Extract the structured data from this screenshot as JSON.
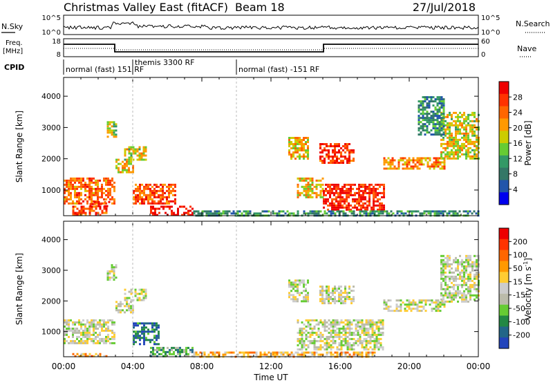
{
  "header": {
    "station": "Christmas Valley East (fitACF)",
    "beam": "Beam 18",
    "date": "27/Jul/2018"
  },
  "top_panels": {
    "nsky_label": "N.Sky",
    "nsky_ticks": [
      "10^5",
      "10^0"
    ],
    "nsearch_label": "N.Search",
    "nsearch_ticks": [
      "10^5",
      "10^0"
    ],
    "freq_label_1": "Freq.",
    "freq_label_2": "[MHz]",
    "freq_ticks": [
      "18",
      "8"
    ],
    "nave_label": "Nave",
    "nave_ticks": [
      "60",
      "0"
    ],
    "cpid_label": "CPID",
    "cpid_segments": [
      "normal (fast) 151 RF",
      "themis 3300 RF",
      "normal (fast) -151 RF"
    ]
  },
  "colors": {
    "power_scale": [
      "#0000ee",
      "#2255aa",
      "#337766",
      "#339966",
      "#66cc33",
      "#cccc00",
      "#ff9900",
      "#ff6600",
      "#ff3300",
      "#ee0000"
    ],
    "velocity_scale": [
      "#2244bb",
      "#226688",
      "#228844",
      "#66cc33",
      "#bbbbaa",
      "#cccccc",
      "#ffcc33",
      "#ff9900",
      "#ff6600",
      "#ff3300",
      "#ee0000"
    ]
  },
  "chart_data": [
    {
      "type": "heatmap",
      "name": "power",
      "xlabel": "Time UT",
      "ylabel": "Slant Range [km]",
      "x_ticks": [
        "00:00",
        "04:00",
        "08:00",
        "12:00",
        "16:00",
        "20:00",
        "00:00"
      ],
      "y_ticks": [
        "1000",
        "2000",
        "3000",
        "4000"
      ],
      "xlim": [
        0,
        24
      ],
      "ylim": [
        180,
        4600
      ],
      "colorbar_label": "Power [dB]",
      "colorbar_ticks": [
        "28",
        "24",
        "20",
        "16",
        "12",
        "8",
        "4"
      ],
      "regions": [
        {
          "t0": 0.0,
          "t1": 3.0,
          "r0": 600,
          "r1": 1400,
          "level": 0.75
        },
        {
          "t0": 0.5,
          "t1": 2.5,
          "r0": 200,
          "r1": 500,
          "level": 0.8
        },
        {
          "t0": 1.5,
          "t1": 2.7,
          "r0": 500,
          "r1": 650,
          "level": 0.9
        },
        {
          "t0": 2.5,
          "t1": 3.1,
          "r0": 2700,
          "r1": 3200,
          "level": 0.5
        },
        {
          "t0": 3.0,
          "t1": 4.0,
          "r0": 1600,
          "r1": 2000,
          "level": 0.6
        },
        {
          "t0": 3.5,
          "t1": 4.8,
          "r0": 2000,
          "r1": 2400,
          "level": 0.55
        },
        {
          "t0": 4.0,
          "t1": 6.5,
          "r0": 600,
          "r1": 1200,
          "level": 0.8
        },
        {
          "t0": 5.0,
          "t1": 7.5,
          "r0": 200,
          "r1": 500,
          "level": 0.95
        },
        {
          "t0": 13.0,
          "t1": 14.2,
          "r0": 2000,
          "r1": 2700,
          "level": 0.6
        },
        {
          "t0": 14.8,
          "t1": 16.8,
          "r0": 1900,
          "r1": 2500,
          "level": 0.85
        },
        {
          "t0": 13.5,
          "t1": 15.0,
          "r0": 800,
          "r1": 1400,
          "level": 0.6
        },
        {
          "t0": 15.0,
          "t1": 18.5,
          "r0": 400,
          "r1": 1200,
          "level": 0.9
        },
        {
          "t0": 18.5,
          "t1": 22.0,
          "r0": 1700,
          "r1": 2050,
          "level": 0.7
        },
        {
          "t0": 21.8,
          "t1": 24.0,
          "r0": 2000,
          "r1": 3500,
          "level": 0.55
        },
        {
          "t0": 20.5,
          "t1": 22.0,
          "r0": 2800,
          "r1": 4000,
          "level": 0.3
        },
        {
          "t0": 7.5,
          "t1": 24.0,
          "r0": 180,
          "r1": 350,
          "level": 0.3
        }
      ]
    },
    {
      "type": "heatmap",
      "name": "velocity",
      "xlabel": "Time UT",
      "ylabel": "Slant Range [km]",
      "x_ticks": [
        "00:00",
        "04:00",
        "08:00",
        "12:00",
        "16:00",
        "20:00",
        "00:00"
      ],
      "y_ticks": [
        "1000",
        "2000",
        "3000",
        "4000"
      ],
      "xlim": [
        0,
        24
      ],
      "ylim": [
        180,
        4600
      ],
      "colorbar_label": "Velocity [m s",
      "colorbar_label_sup": "-1",
      "colorbar_label_end": "]",
      "colorbar_ticks": [
        "200",
        "100",
        "50",
        "15",
        "-15",
        "-50",
        "-100",
        "-200"
      ],
      "regions": [
        {
          "t0": 0.0,
          "t1": 3.0,
          "r0": 600,
          "r1": 1400,
          "level": 0.45
        },
        {
          "t0": 2.5,
          "t1": 3.1,
          "r0": 2700,
          "r1": 3200,
          "level": 0.45
        },
        {
          "t0": 3.0,
          "t1": 4.0,
          "r0": 1600,
          "r1": 2000,
          "level": 0.45
        },
        {
          "t0": 3.5,
          "t1": 4.8,
          "r0": 2000,
          "r1": 2400,
          "level": 0.45
        },
        {
          "t0": 4.0,
          "t1": 5.5,
          "r0": 600,
          "r1": 1300,
          "level": 0.15
        },
        {
          "t0": 5.0,
          "t1": 7.5,
          "r0": 200,
          "r1": 500,
          "level": 0.3
        },
        {
          "t0": 0.5,
          "t1": 2.5,
          "r0": 180,
          "r1": 300,
          "level": 0.65
        },
        {
          "t0": 13.0,
          "t1": 14.2,
          "r0": 2000,
          "r1": 2700,
          "level": 0.45
        },
        {
          "t0": 14.8,
          "t1": 16.8,
          "r0": 1900,
          "r1": 2500,
          "level": 0.45
        },
        {
          "t0": 13.5,
          "t1": 18.5,
          "r0": 400,
          "r1": 1400,
          "level": 0.45
        },
        {
          "t0": 18.5,
          "t1": 22.0,
          "r0": 1700,
          "r1": 2050,
          "level": 0.45
        },
        {
          "t0": 21.8,
          "t1": 24.0,
          "r0": 2000,
          "r1": 3500,
          "level": 0.45
        },
        {
          "t0": 7.5,
          "t1": 18.0,
          "r0": 180,
          "r1": 350,
          "level": 0.6
        }
      ]
    }
  ]
}
